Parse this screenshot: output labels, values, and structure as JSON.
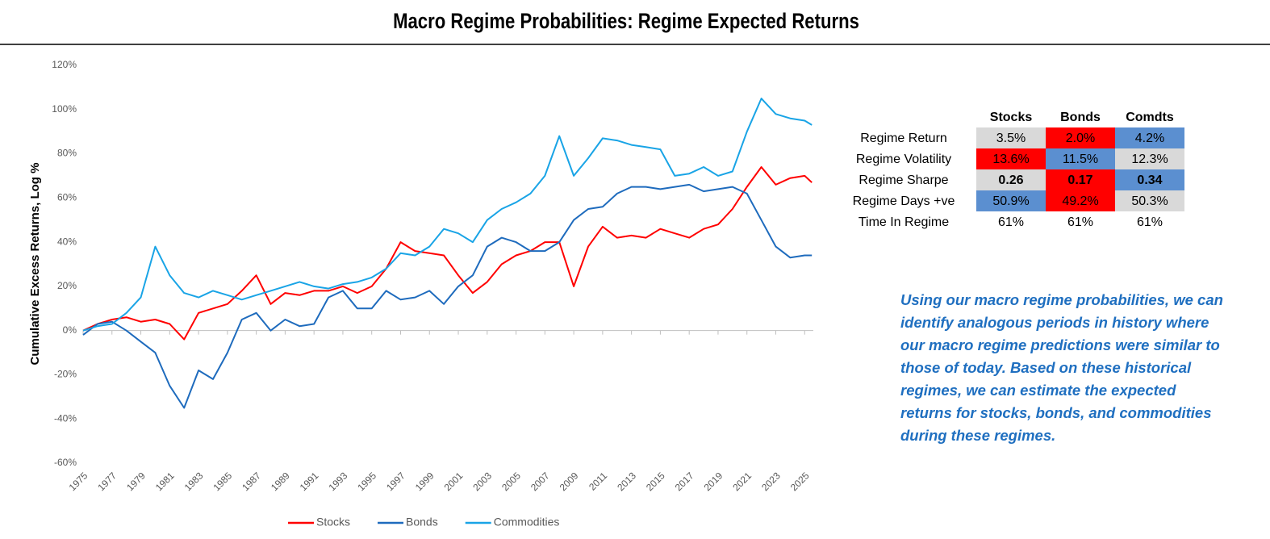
{
  "chart_data": {
    "type": "line",
    "title": "Macro Regime Probabilities: Regime Expected Returns",
    "y_label": "Cumulative Excess Returns, Log %",
    "x": [
      1975,
      1976,
      1977,
      1978,
      1979,
      1980,
      1981,
      1982,
      1983,
      1984,
      1985,
      1986,
      1987,
      1988,
      1989,
      1990,
      1991,
      1992,
      1993,
      1994,
      1995,
      1996,
      1997,
      1998,
      1999,
      2000,
      2001,
      2002,
      2003,
      2004,
      2005,
      2006,
      2007,
      2008,
      2009,
      2010,
      2011,
      2012,
      2013,
      2014,
      2015,
      2016,
      2017,
      2018,
      2019,
      2020,
      2021,
      2022,
      2023,
      2024,
      2025,
      2025.5
    ],
    "xlim": [
      1975,
      2025.6
    ],
    "xticks": [
      1975,
      1977,
      1979,
      1981,
      1983,
      1985,
      1987,
      1989,
      1991,
      1993,
      1995,
      1997,
      1999,
      2001,
      2003,
      2005,
      2007,
      2009,
      2011,
      2013,
      2015,
      2017,
      2019,
      2021,
      2023,
      2025
    ],
    "ylim": [
      -60,
      120
    ],
    "yticks": [
      {
        "value": -60,
        "label": "-60%"
      },
      {
        "value": -40,
        "label": "-40%"
      },
      {
        "value": -20,
        "label": "-20%"
      },
      {
        "value": 0,
        "label": "0%"
      },
      {
        "value": 20,
        "label": "20%"
      },
      {
        "value": 40,
        "label": "40%"
      },
      {
        "value": 60,
        "label": "60%"
      },
      {
        "value": 80,
        "label": "80%"
      },
      {
        "value": 100,
        "label": "100%"
      },
      {
        "value": 120,
        "label": "120%"
      }
    ],
    "grid": false,
    "legend": "bottom",
    "series": [
      {
        "name": "Stocks",
        "color": "#ff0000",
        "values": [
          0,
          3,
          5,
          6,
          4,
          5,
          3,
          -4,
          8,
          10,
          12,
          18,
          25,
          12,
          17,
          16,
          18,
          18,
          20,
          17,
          20,
          28,
          40,
          36,
          35,
          34,
          25,
          17,
          22,
          30,
          34,
          36,
          40,
          40,
          20,
          38,
          47,
          42,
          43,
          42,
          46,
          44,
          42,
          46,
          48,
          55,
          65,
          74,
          66,
          69,
          70,
          67
        ]
      },
      {
        "name": "Bonds",
        "color": "#1e6bbd",
        "values": [
          -2,
          3,
          4,
          0,
          -5,
          -10,
          -25,
          -35,
          -18,
          -22,
          -10,
          5,
          8,
          0,
          5,
          2,
          3,
          15,
          18,
          10,
          10,
          18,
          14,
          15,
          18,
          12,
          20,
          25,
          38,
          42,
          40,
          36,
          36,
          40,
          50,
          55,
          56,
          62,
          65,
          65,
          64,
          65,
          66,
          63,
          64,
          65,
          62,
          50,
          38,
          33,
          34,
          34
        ]
      },
      {
        "name": "Commodities",
        "color": "#19a4e6",
        "values": [
          0,
          2,
          3,
          8,
          15,
          38,
          25,
          17,
          15,
          18,
          16,
          14,
          16,
          18,
          20,
          22,
          20,
          19,
          21,
          22,
          24,
          28,
          35,
          34,
          38,
          46,
          44,
          40,
          50,
          55,
          58,
          62,
          70,
          88,
          70,
          78,
          87,
          86,
          84,
          83,
          82,
          70,
          71,
          74,
          70,
          72,
          90,
          105,
          98,
          96,
          95,
          93
        ]
      }
    ]
  },
  "table": {
    "columns": [
      "Stocks",
      "Bonds",
      "Comdts"
    ],
    "rows": [
      {
        "label": "Regime Return",
        "cells": [
          "3.5%",
          "2.0%",
          "4.2%"
        ],
        "colors": [
          "#d9d9d9",
          "#ff0000",
          "#5b8fd0"
        ],
        "bold": false
      },
      {
        "label": "Regime Volatility",
        "cells": [
          "13.6%",
          "11.5%",
          "12.3%"
        ],
        "colors": [
          "#ff0000",
          "#5b8fd0",
          "#d9d9d9"
        ],
        "bold": false
      },
      {
        "label": "Regime Sharpe",
        "cells": [
          "0.26",
          "0.17",
          "0.34"
        ],
        "colors": [
          "#d9d9d9",
          "#ff0000",
          "#5b8fd0"
        ],
        "bold": true
      },
      {
        "label": "Regime Days +ve",
        "cells": [
          "50.9%",
          "49.2%",
          "50.3%"
        ],
        "colors": [
          "#5b8fd0",
          "#ff0000",
          "#d9d9d9"
        ],
        "bold": false
      },
      {
        "label": "Time In Regime",
        "cells": [
          "61%",
          "61%",
          "61%"
        ],
        "colors": [
          "#ffffff",
          "#ffffff",
          "#ffffff"
        ],
        "bold": false
      }
    ]
  },
  "note": [
    "Using our macro regime probabilities, we can",
    "identify analogous periods in history where",
    "our macro regime predictions were similar to",
    "those of today. Based on these historical",
    "regimes, we can estimate the expected",
    "returns for stocks, bonds, and commodities",
    "during these regimes."
  ]
}
